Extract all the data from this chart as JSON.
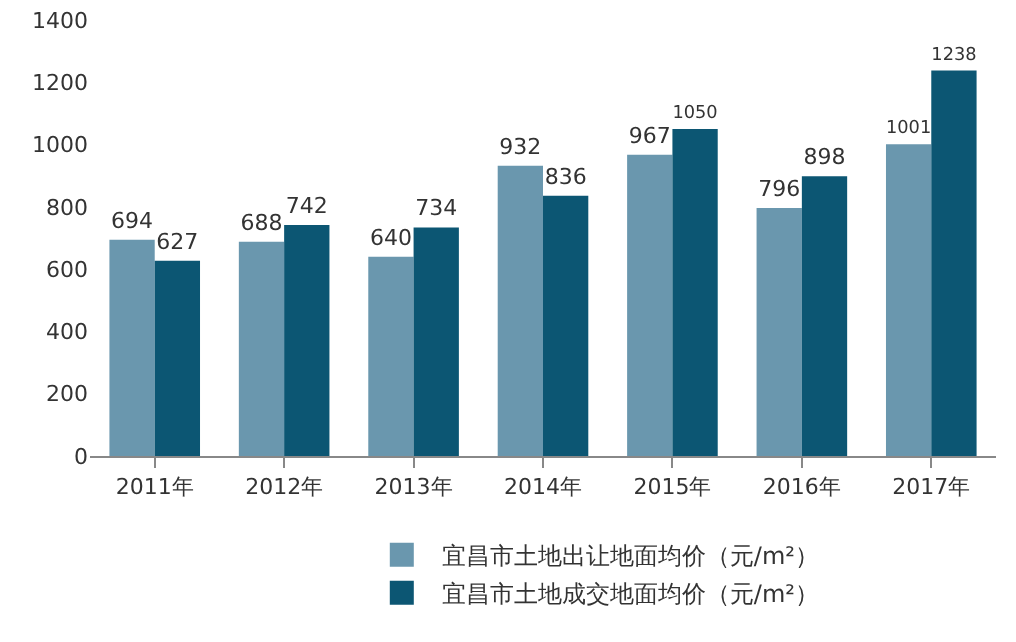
{
  "chart_data": {
    "type": "bar",
    "categories": [
      "2011年",
      "2012年",
      "2013年",
      "2014年",
      "2015年",
      "2016年",
      "2017年"
    ],
    "series": [
      {
        "name": "宜昌市土地出让地面均价（元/m²）",
        "color": "#6a97ae",
        "values": [
          694,
          688,
          640,
          932,
          967,
          796,
          1001
        ]
      },
      {
        "name": "宜昌市土地成交地面均价（元/m²）",
        "color": "#0c5673",
        "values": [
          627,
          742,
          734,
          836,
          1050,
          898,
          1238
        ]
      }
    ],
    "ylim": [
      0,
      1400
    ],
    "yticks": [
      0,
      200,
      400,
      600,
      800,
      1000,
      1200,
      1400
    ],
    "grid": false,
    "legend": "bottom",
    "data_labels": true
  }
}
